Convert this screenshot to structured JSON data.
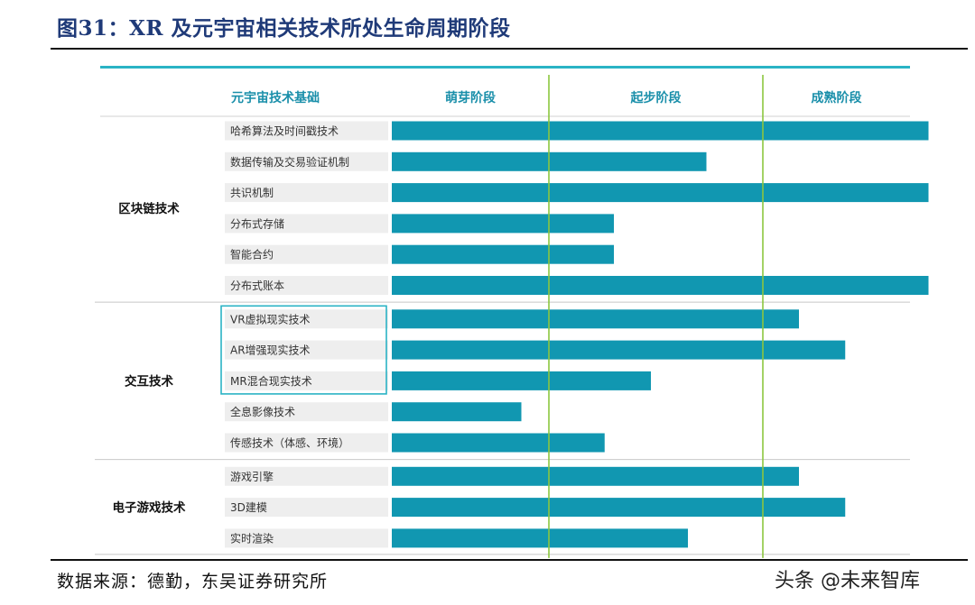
{
  "figure_title": "图31：XR 及元宇宙相关技术所处生命周期阶段",
  "source": "数据来源：德勤，东吴证券研究所",
  "watermark": "头条 @未来智库",
  "colors": {
    "bar": "#1197b1",
    "stage_line": "#8cc63f",
    "header_text": "#1a8faa",
    "label_bg": "#eeeeee",
    "frame": "#2ab3c5"
  },
  "chart_data": {
    "type": "bar",
    "orientation": "horizontal",
    "title": "XR 及元宇宙相关技术所处生命周期阶段",
    "category_header": "元宇宙技术基础",
    "stages": [
      "萌芽阶段",
      "起步阶段",
      "成熟阶段"
    ],
    "x_range": [
      0,
      3
    ],
    "groups": [
      {
        "name": "区块链技术",
        "rows": [
          {
            "label": "哈希算法及时间戳技术",
            "value": 2.9
          },
          {
            "label": "数据传输及交易验证机制",
            "value": 1.7
          },
          {
            "label": "共识机制",
            "value": 2.9
          },
          {
            "label": "分布式存储",
            "value": 1.2
          },
          {
            "label": "智能合约",
            "value": 1.2
          },
          {
            "label": "分布式账本",
            "value": 2.9
          }
        ]
      },
      {
        "name": "交互技术",
        "rows": [
          {
            "label": "VR虚拟现实技术",
            "value": 2.2,
            "framed": true
          },
          {
            "label": "AR增强现实技术",
            "value": 2.45,
            "framed": true
          },
          {
            "label": "MR混合现实技术",
            "value": 1.4,
            "framed": true
          },
          {
            "label": "全息影像技术",
            "value": 0.7
          },
          {
            "label": "传感技术（体感、环境）",
            "value": 1.15
          }
        ]
      },
      {
        "name": "电子游戏技术",
        "rows": [
          {
            "label": "游戏引擎",
            "value": 2.2
          },
          {
            "label": "3D建模",
            "value": 2.45
          },
          {
            "label": "实时渲染",
            "value": 1.6
          }
        ]
      }
    ]
  }
}
